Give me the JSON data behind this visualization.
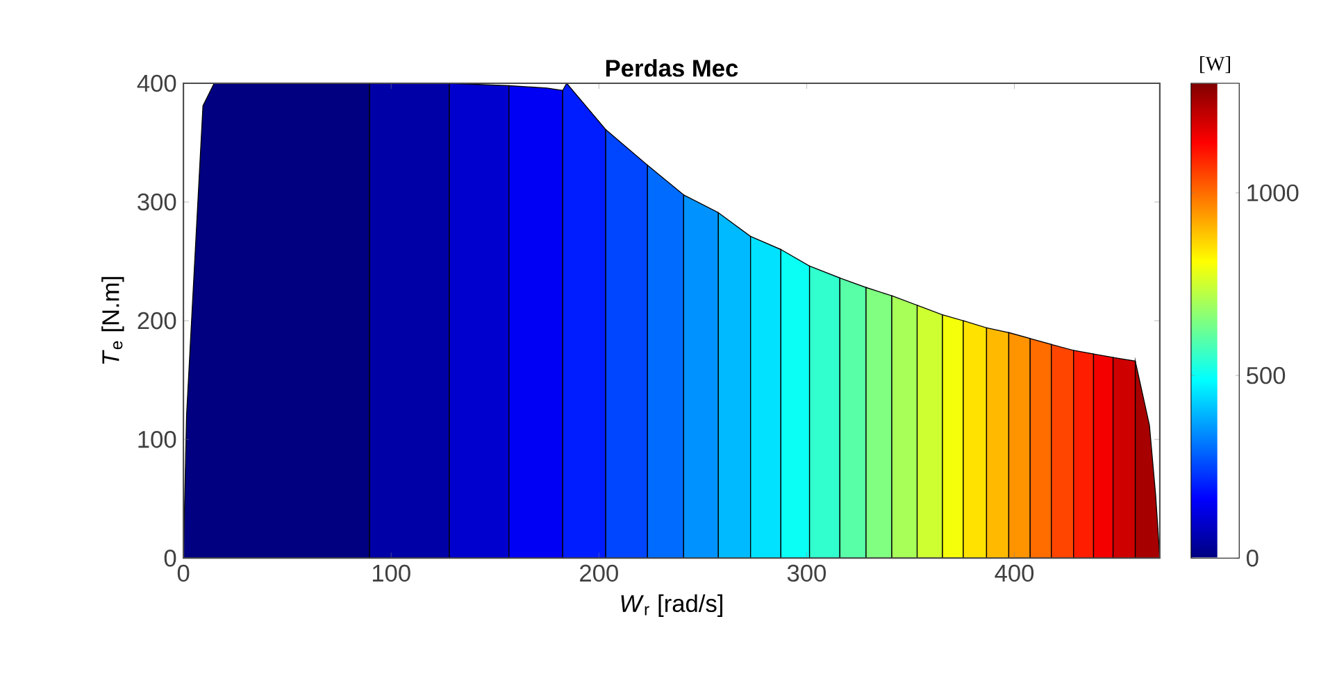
{
  "chart_data": {
    "type": "area",
    "title": "Perdas Mec",
    "xlabel": "*W*$_{r}$ [rad/s]",
    "ylabel": "*T*$_{e}$ [N.m]",
    "clabel": "[W]",
    "xlim": [
      0,
      470
    ],
    "xticks": [
      0,
      100,
      200,
      300,
      400
    ],
    "ylim": [
      0,
      400
    ],
    "yticks": [
      0,
      100,
      200,
      300,
      400
    ],
    "clim": [
      0,
      1300
    ],
    "cticks": [
      0,
      500,
      1000
    ],
    "grid": false,
    "series": [
      {
        "color": "#000080",
        "x": [
          0,
          1.5,
          9.4,
          14.8,
          89.6
        ],
        "values": [
          0,
          120,
          381,
          400,
          400
        ]
      },
      {
        "color": "#0000a7",
        "x": [
          89.6,
          128
        ],
        "values": [
          400,
          400
        ]
      },
      {
        "color": "#0000ce",
        "x": [
          128,
          156.7
        ],
        "values": [
          400,
          398
        ]
      },
      {
        "color": "#0000f5",
        "x": [
          156.7,
          175,
          182.6
        ],
        "values": [
          398,
          396,
          394
        ]
      },
      {
        "color": "#001dff",
        "x": [
          182.6,
          184.5,
          203.3
        ],
        "values": [
          394,
          400,
          361
        ]
      },
      {
        "color": "#0045ff",
        "x": [
          203.3,
          223.4
        ],
        "values": [
          361,
          331
        ]
      },
      {
        "color": "#006cff",
        "x": [
          223.4,
          240.8
        ],
        "values": [
          331,
          306
        ]
      },
      {
        "color": "#0093ff",
        "x": [
          240.8,
          257.5
        ],
        "values": [
          306,
          291
        ]
      },
      {
        "color": "#00baff",
        "x": [
          257.5,
          273
        ],
        "values": [
          291,
          271
        ]
      },
      {
        "color": "#00e2ff",
        "x": [
          273,
          287.6
        ],
        "values": [
          271,
          260
        ]
      },
      {
        "color": "#0afff5",
        "x": [
          287.6,
          301.4
        ],
        "values": [
          260,
          246
        ]
      },
      {
        "color": "#31ffce",
        "x": [
          301.4,
          316
        ],
        "values": [
          246,
          236
        ]
      },
      {
        "color": "#58ffa7",
        "x": [
          316,
          328.6
        ],
        "values": [
          236,
          228
        ]
      },
      {
        "color": "#80ff80",
        "x": [
          328.6,
          341
        ],
        "values": [
          228,
          221
        ]
      },
      {
        "color": "#a7ff58",
        "x": [
          341,
          353.2
        ],
        "values": [
          221,
          213
        ]
      },
      {
        "color": "#ceff31",
        "x": [
          353.2,
          365.4
        ],
        "values": [
          213,
          205
        ]
      },
      {
        "color": "#f5ff0a",
        "x": [
          365.4,
          375.4
        ],
        "values": [
          205,
          200
        ]
      },
      {
        "color": "#ffe200",
        "x": [
          375.4,
          386.6
        ],
        "values": [
          200,
          194
        ]
      },
      {
        "color": "#ffba00",
        "x": [
          386.6,
          397.3
        ],
        "values": [
          194,
          190
        ]
      },
      {
        "color": "#ff9300",
        "x": [
          397.3,
          407.6
        ],
        "values": [
          190,
          185
        ]
      },
      {
        "color": "#ff6c00",
        "x": [
          407.6,
          417.8
        ],
        "values": [
          185,
          180
        ]
      },
      {
        "color": "#ff4500",
        "x": [
          417.8,
          428.5
        ],
        "values": [
          180,
          175
        ]
      },
      {
        "color": "#ff1d00",
        "x": [
          428.5,
          438.1
        ],
        "values": [
          175,
          172
        ]
      },
      {
        "color": "#f50000",
        "x": [
          438.1,
          447.5
        ],
        "values": [
          172,
          169
        ]
      },
      {
        "color": "#ce0000",
        "x": [
          447.5,
          458.2
        ],
        "values": [
          169,
          166
        ]
      },
      {
        "color": "#a70000",
        "x": [
          458.2,
          465,
          468,
          470
        ],
        "values": [
          166,
          112,
          53,
          0
        ]
      }
    ]
  }
}
